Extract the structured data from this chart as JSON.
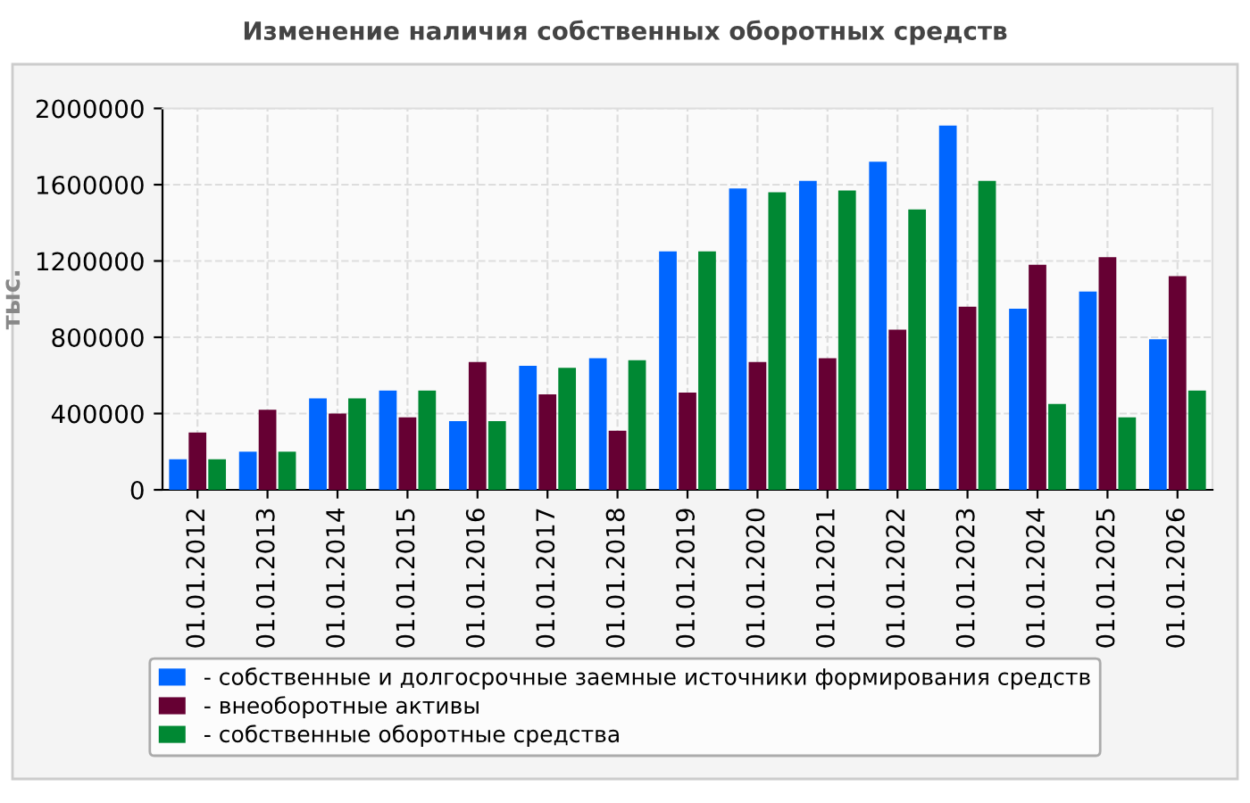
{
  "chart_data": {
    "type": "bar",
    "title": "Изменение наличия собственных оборотных средств",
    "ylabel": "тыс.",
    "categories": [
      "01.01.2012",
      "01.01.2013",
      "01.01.2014",
      "01.01.2015",
      "01.01.2016",
      "01.01.2017",
      "01.01.2018",
      "01.01.2019",
      "01.01.2020",
      "01.01.2021",
      "01.01.2022",
      "01.01.2023",
      "01.01.2024",
      "01.01.2025",
      "01.01.2026"
    ],
    "series": [
      {
        "name": "- собственные и долгосрочные заемные источники формирования средств",
        "color": "#0066ff",
        "values": [
          160000,
          200000,
          480000,
          520000,
          360000,
          650000,
          690000,
          1250000,
          1580000,
          1620000,
          1720000,
          1910000,
          950000,
          1040000,
          790000
        ]
      },
      {
        "name": "- внеоборотные активы",
        "color": "#660033",
        "values": [
          300000,
          420000,
          400000,
          380000,
          670000,
          500000,
          310000,
          510000,
          670000,
          690000,
          840000,
          960000,
          1180000,
          1220000,
          1120000
        ]
      },
      {
        "name": "- собственные оборотные средства",
        "color": "#008833",
        "values": [
          160000,
          200000,
          480000,
          520000,
          360000,
          640000,
          680000,
          1250000,
          1560000,
          1570000,
          1470000,
          1620000,
          450000,
          380000,
          520000
        ]
      }
    ],
    "ylim": [
      0,
      2000000
    ],
    "yticks": [
      0,
      400000,
      800000,
      1200000,
      1600000,
      2000000
    ],
    "grid": true,
    "legend": "bottom"
  }
}
